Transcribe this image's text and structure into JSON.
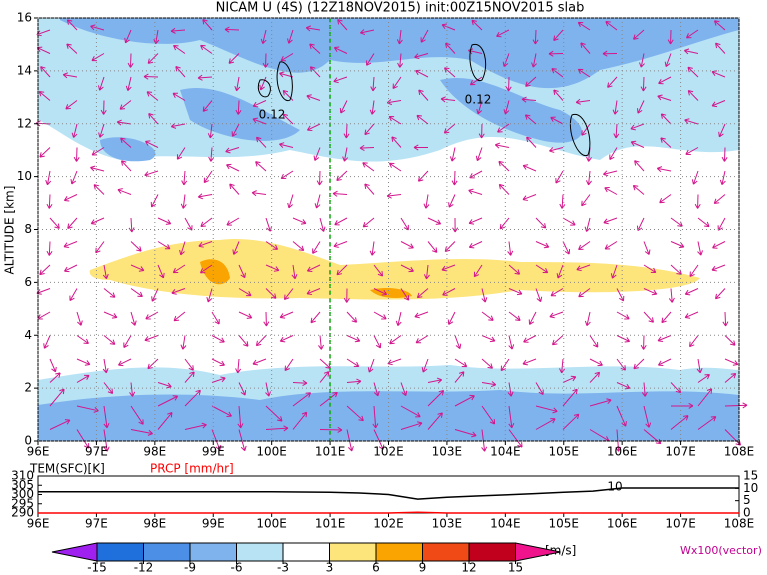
{
  "chart_data": [
    {
      "type": "field",
      "title": "NICAM U (4S) (12Z18NOV2015) init:00Z15NOV2015 slab",
      "ylabel": "ALTITUDE [km]",
      "xlim": [
        96,
        108
      ],
      "xticks": [
        {
          "value": 96,
          "label": "96E"
        },
        {
          "value": 97,
          "label": "97E"
        },
        {
          "value": 98,
          "label": "98E"
        },
        {
          "value": 99,
          "label": "99E"
        },
        {
          "value": 100,
          "label": "100E"
        },
        {
          "value": 101,
          "label": "101E"
        },
        {
          "value": 102,
          "label": "102E"
        },
        {
          "value": 103,
          "label": "103E"
        },
        {
          "value": 104,
          "label": "104E"
        },
        {
          "value": 105,
          "label": "105E"
        },
        {
          "value": 106,
          "label": "106E"
        },
        {
          "value": 107,
          "label": "107E"
        },
        {
          "value": 108,
          "label": "108E"
        }
      ],
      "ylim": [
        0,
        16
      ],
      "yticks": [
        0,
        2,
        4,
        6,
        8,
        10,
        12,
        14,
        16
      ],
      "grid": true,
      "annotations": [
        "0.12",
        "0.12"
      ]
    },
    {
      "type": "line",
      "labels": [
        "TEM(SFC)[K]",
        "PRCP [mm/hr]"
      ],
      "annotation": "10",
      "xlim": [
        96,
        108
      ],
      "ylim": [
        290,
        310
      ],
      "yticks": [
        290,
        295,
        300,
        305,
        310
      ],
      "y2lim": [
        0,
        15
      ],
      "y2ticks": [
        0,
        5,
        10,
        15
      ],
      "x": [
        96,
        97,
        98,
        99,
        100,
        101,
        101.5,
        102,
        102.5,
        103,
        103.5,
        104,
        104.5,
        105,
        105.5,
        106,
        107,
        108
      ],
      "series": [
        {
          "name": "TEM(SFC)[K]",
          "color": "#000000",
          "values": [
            301.5,
            301.5,
            301.5,
            301.5,
            301.5,
            301.2,
            300.8,
            300,
            297.5,
            298.5,
            299.2,
            299.8,
            300.5,
            301.2,
            301.8,
            303.5,
            303.5,
            303.5
          ]
        },
        {
          "name": "PRCP [mm/hr]",
          "color": "#ff0000",
          "axis": "y2",
          "values": [
            0,
            0,
            0,
            0,
            0,
            0,
            0,
            0,
            0.3,
            0,
            0,
            0,
            0,
            0,
            0,
            0,
            0,
            0
          ]
        }
      ]
    },
    {
      "type": "colorbar",
      "ticks": [
        -15,
        -12,
        -9,
        -6,
        -3,
        3,
        6,
        9,
        12,
        15
      ],
      "colors": [
        "#a020f0",
        "#1f6fdc",
        "#4b8fe6",
        "#7fb3ee",
        "#b7e3f5",
        "#ffffff",
        "#fde57c",
        "#f9a400",
        "#f04a16",
        "#c0001c",
        "#f0148c"
      ],
      "unit": "[m/s]",
      "note": "Wx100(vector)"
    }
  ]
}
